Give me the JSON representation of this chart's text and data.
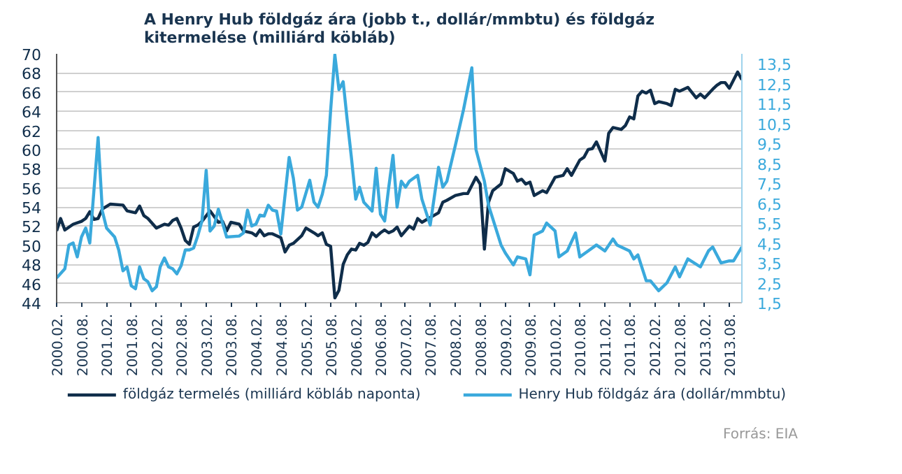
{
  "chart_data": {
    "type": "line",
    "title": "A Henry Hub földgáz ára (jobb t., dollár/mmbtu) és földgáz\nkitermelése  (milliárd köbláb)",
    "annotations": [
      "Forrás: EIA"
    ],
    "series": [
      {
        "name": "földgáz termelés (milliárd köbláb naponta)",
        "color": "#0f2d4a",
        "x": [
          "2000-02",
          "2000-03",
          "2000-04",
          "2000-06",
          "2000-08",
          "2000-09",
          "2000-10",
          "2000-11",
          "2000-12",
          "2001-01",
          "2001-03",
          "2001-06",
          "2001-07",
          "2001-09",
          "2001-10",
          "2001-11",
          "2001-12",
          "2002-02",
          "2002-04",
          "2002-05",
          "2002-06",
          "2002-07",
          "2002-08",
          "2002-09",
          "2002-10",
          "2002-11",
          "2002-12",
          "2003-01",
          "2003-03",
          "2003-04",
          "2003-05",
          "2003-06",
          "2003-07",
          "2003-08",
          "2003-10",
          "2003-11",
          "2004-01",
          "2004-02",
          "2004-03",
          "2004-04",
          "2004-05",
          "2004-06",
          "2004-08",
          "2004-09",
          "2004-10",
          "2004-11",
          "2005-01",
          "2005-02",
          "2005-04",
          "2005-05",
          "2005-06",
          "2005-07",
          "2005-08",
          "2005-09",
          "2005-10",
          "2005-11",
          "2005-12",
          "2006-01",
          "2006-02",
          "2006-03",
          "2006-04",
          "2006-05",
          "2006-06",
          "2006-07",
          "2006-08",
          "2006-09",
          "2006-10",
          "2006-11",
          "2006-12",
          "2007-01",
          "2007-03",
          "2007-04",
          "2007-05",
          "2007-06",
          "2007-08",
          "2007-10",
          "2007-11",
          "2007-12",
          "2008-02",
          "2008-04",
          "2008-05",
          "2008-07",
          "2008-08",
          "2008-09",
          "2008-10",
          "2008-11",
          "2009-01",
          "2009-02",
          "2009-04",
          "2009-05",
          "2009-06",
          "2009-07",
          "2009-08",
          "2009-09",
          "2009-11",
          "2009-12",
          "2010-02",
          "2010-04",
          "2010-05",
          "2010-06",
          "2010-08",
          "2010-09",
          "2010-10",
          "2010-11",
          "2010-12",
          "2011-02",
          "2011-03",
          "2011-04",
          "2011-06",
          "2011-07",
          "2011-08",
          "2011-09",
          "2011-10",
          "2011-11",
          "2011-12",
          "2012-01",
          "2012-02",
          "2012-03",
          "2012-05",
          "2012-06",
          "2012-07",
          "2012-08",
          "2012-10",
          "2012-12",
          "2013-01",
          "2013-02",
          "2013-04",
          "2013-05",
          "2013-06",
          "2013-07",
          "2013-08",
          "2013-10",
          "2013-11"
        ],
        "values": [
          51.5,
          52.8,
          51.6,
          52.2,
          52.5,
          52.8,
          53.5,
          52.7,
          52.8,
          53.8,
          54.3,
          54.2,
          53.6,
          53.4,
          54.1,
          53.1,
          52.8,
          51.8,
          52.2,
          52.1,
          52.6,
          52.8,
          51.8,
          50.5,
          50.1,
          51.9,
          52.1,
          52.5,
          53.6,
          53.0,
          52.4,
          52.5,
          51.5,
          52.4,
          52.2,
          51.5,
          51.3,
          51.0,
          51.6,
          51.0,
          51.2,
          51.2,
          50.8,
          49.3,
          50.0,
          50.2,
          51.0,
          51.8,
          51.3,
          51.0,
          51.3,
          50.1,
          49.9,
          44.5,
          45.3,
          48.0,
          49.0,
          49.6,
          49.5,
          50.2,
          50.0,
          50.3,
          51.3,
          50.9,
          51.3,
          51.6,
          51.3,
          51.5,
          51.9,
          51.0,
          52.0,
          51.7,
          52.8,
          52.4,
          52.9,
          53.4,
          54.5,
          54.7,
          55.2,
          55.4,
          55.4,
          57.1,
          56.4,
          49.6,
          54.5,
          55.7,
          56.4,
          58.0,
          57.5,
          56.7,
          56.9,
          56.4,
          56.6,
          55.2,
          55.7,
          55.5,
          57.1,
          57.3,
          58.0,
          57.3,
          58.9,
          59.2,
          60.0,
          60.1,
          60.8,
          58.8,
          61.7,
          62.3,
          62.1,
          62.5,
          63.4,
          63.2,
          65.6,
          66.1,
          65.9,
          66.2,
          64.8,
          65.0,
          64.8,
          64.6,
          66.3,
          66.1,
          66.5,
          65.4,
          65.8,
          65.4,
          66.3,
          66.7,
          67.0,
          67.0,
          66.4,
          68.1,
          67.3
        ]
      },
      {
        "name": "Henry Hub földgáz ára (dollár/mmbtu)",
        "color": "#3aa9dc",
        "axis": "y2",
        "x": [
          "2000-02",
          "2000-04",
          "2000-05",
          "2000-06",
          "2000-07",
          "2000-08",
          "2000-09",
          "2000-10",
          "2000-12",
          "2001-01",
          "2001-02",
          "2001-04",
          "2001-05",
          "2001-06",
          "2001-07",
          "2001-08",
          "2001-09",
          "2001-10",
          "2001-11",
          "2001-12",
          "2002-01",
          "2002-02",
          "2002-03",
          "2002-04",
          "2002-05",
          "2002-06",
          "2002-07",
          "2002-08",
          "2002-09",
          "2002-10",
          "2002-11",
          "2002-12",
          "2003-01",
          "2003-02",
          "2003-03",
          "2003-04",
          "2003-05",
          "2003-06",
          "2003-07",
          "2003-10",
          "2003-11",
          "2003-12",
          "2004-01",
          "2004-02",
          "2004-03",
          "2004-04",
          "2004-05",
          "2004-06",
          "2004-07",
          "2004-08",
          "2004-10",
          "2004-11",
          "2004-12",
          "2005-01",
          "2005-03",
          "2005-04",
          "2005-05",
          "2005-06",
          "2005-07",
          "2005-08",
          "2005-09",
          "2005-10",
          "2005-11",
          "2005-12",
          "2006-01",
          "2006-02",
          "2006-03",
          "2006-04",
          "2006-06",
          "2006-07",
          "2006-08",
          "2006-09",
          "2006-10",
          "2006-11",
          "2006-12",
          "2007-01",
          "2007-02",
          "2007-03",
          "2007-05",
          "2007-06",
          "2007-08",
          "2007-10",
          "2007-11",
          "2007-12",
          "2008-02",
          "2008-04",
          "2008-06",
          "2008-07",
          "2008-09",
          "2008-10",
          "2009-01",
          "2009-02",
          "2009-04",
          "2009-05",
          "2009-07",
          "2009-08",
          "2009-09",
          "2009-11",
          "2009-12",
          "2010-02",
          "2010-03",
          "2010-05",
          "2010-07",
          "2010-08",
          "2010-10",
          "2010-12",
          "2011-02",
          "2011-04",
          "2011-05",
          "2011-08",
          "2011-09",
          "2011-10",
          "2011-12",
          "2012-01",
          "2012-03",
          "2012-05",
          "2012-07",
          "2012-08",
          "2012-10",
          "2013-01",
          "2013-03",
          "2013-04",
          "2013-06",
          "2013-08",
          "2013-09",
          "2013-11"
        ],
        "values": [
          2.75,
          3.2,
          4.4,
          4.5,
          3.8,
          4.8,
          5.25,
          4.5,
          9.8,
          6.1,
          5.25,
          4.8,
          4.15,
          3.1,
          3.3,
          2.35,
          2.2,
          3.3,
          2.7,
          2.55,
          2.1,
          2.3,
          3.3,
          3.75,
          3.3,
          3.2,
          2.95,
          3.35,
          4.15,
          4.15,
          4.25,
          4.85,
          5.6,
          8.15,
          5.1,
          5.35,
          6.2,
          5.5,
          4.8,
          4.85,
          5.0,
          6.15,
          5.35,
          5.45,
          5.9,
          5.85,
          6.4,
          6.15,
          6.1,
          4.95,
          8.8,
          7.75,
          6.15,
          6.3,
          7.65,
          6.55,
          6.3,
          6.95,
          7.9,
          11.15,
          13.95,
          12.2,
          12.6,
          10.65,
          8.75,
          6.7,
          7.3,
          6.55,
          6.1,
          8.25,
          5.95,
          5.6,
          7.3,
          8.9,
          6.3,
          7.6,
          7.3,
          7.6,
          7.9,
          6.7,
          5.4,
          8.3,
          7.3,
          7.6,
          9.4,
          11.2,
          13.3,
          9.2,
          7.6,
          6.4,
          4.4,
          4.0,
          3.4,
          3.8,
          3.7,
          2.9,
          4.9,
          5.1,
          5.5,
          5.1,
          3.8,
          4.1,
          5.0,
          3.8,
          4.1,
          4.4,
          4.1,
          4.7,
          4.4,
          4.1,
          3.7,
          3.9,
          2.6,
          2.6,
          2.1,
          2.5,
          3.3,
          2.8,
          3.7,
          3.3,
          4.1,
          4.3,
          3.5,
          3.6,
          3.6,
          4.3
        ]
      }
    ],
    "xlim": [
      "2000-02",
      "2013-11"
    ],
    "xticks": [
      {
        "value": "2000-02",
        "label": "2000.02."
      },
      {
        "value": "2000-08",
        "label": "2000.08."
      },
      {
        "value": "2001-02",
        "label": "2001.02."
      },
      {
        "value": "2001-08",
        "label": "2001.08."
      },
      {
        "value": "2002-02",
        "label": "2002.02."
      },
      {
        "value": "2002-08",
        "label": "2002.08."
      },
      {
        "value": "2003-02",
        "label": "2003.02."
      },
      {
        "value": "2003-08",
        "label": "2003.08."
      },
      {
        "value": "2004-02",
        "label": "2004.02."
      },
      {
        "value": "2004-08",
        "label": "2004.08."
      },
      {
        "value": "2005-02",
        "label": "2005.02."
      },
      {
        "value": "2005-08",
        "label": "2005.08."
      },
      {
        "value": "2006-02",
        "label": "2006.02."
      },
      {
        "value": "2006-08",
        "label": "2006.08."
      },
      {
        "value": "2007-02",
        "label": "2007.02."
      },
      {
        "value": "2007-08",
        "label": "2007.08."
      },
      {
        "value": "2008-02",
        "label": "2008.02."
      },
      {
        "value": "2008-08",
        "label": "2008.08."
      },
      {
        "value": "2009-02",
        "label": "2009.02."
      },
      {
        "value": "2009-08",
        "label": "2009.08."
      },
      {
        "value": "2010-02",
        "label": "2010.02."
      },
      {
        "value": "2010-08",
        "label": "2010.08."
      },
      {
        "value": "2011-02",
        "label": "2011.02."
      },
      {
        "value": "2011-08",
        "label": "2011.08."
      },
      {
        "value": "2012-02",
        "label": "2012.02."
      },
      {
        "value": "2012-08",
        "label": "2012.08."
      },
      {
        "value": "2013-02",
        "label": "2013.02."
      },
      {
        "value": "2013-08",
        "label": "2013.08."
      }
    ],
    "ylim": [
      44,
      70
    ],
    "yticks": [
      44,
      46,
      48,
      50,
      52,
      54,
      56,
      58,
      60,
      62,
      64,
      66,
      68,
      70
    ],
    "y2lim": [
      1.5,
      14.0
    ],
    "y2ticks": [
      {
        "value": 1.5,
        "label": "1,5"
      },
      {
        "value": 2.5,
        "label": "2,5"
      },
      {
        "value": 3.5,
        "label": "3,5"
      },
      {
        "value": 4.5,
        "label": "4,5"
      },
      {
        "value": 5.5,
        "label": "5,5"
      },
      {
        "value": 6.5,
        "label": "6,5"
      },
      {
        "value": 7.5,
        "label": "7,5"
      },
      {
        "value": 8.5,
        "label": "8,5"
      },
      {
        "value": 9.5,
        "label": "9,5"
      },
      {
        "value": 10.5,
        "label": "10,5"
      },
      {
        "value": 11.5,
        "label": "11,5"
      },
      {
        "value": 12.5,
        "label": "12,5"
      },
      {
        "value": 13.5,
        "label": "13,5"
      }
    ],
    "grid": "y",
    "legend": "bottom",
    "line_style": "solid"
  }
}
